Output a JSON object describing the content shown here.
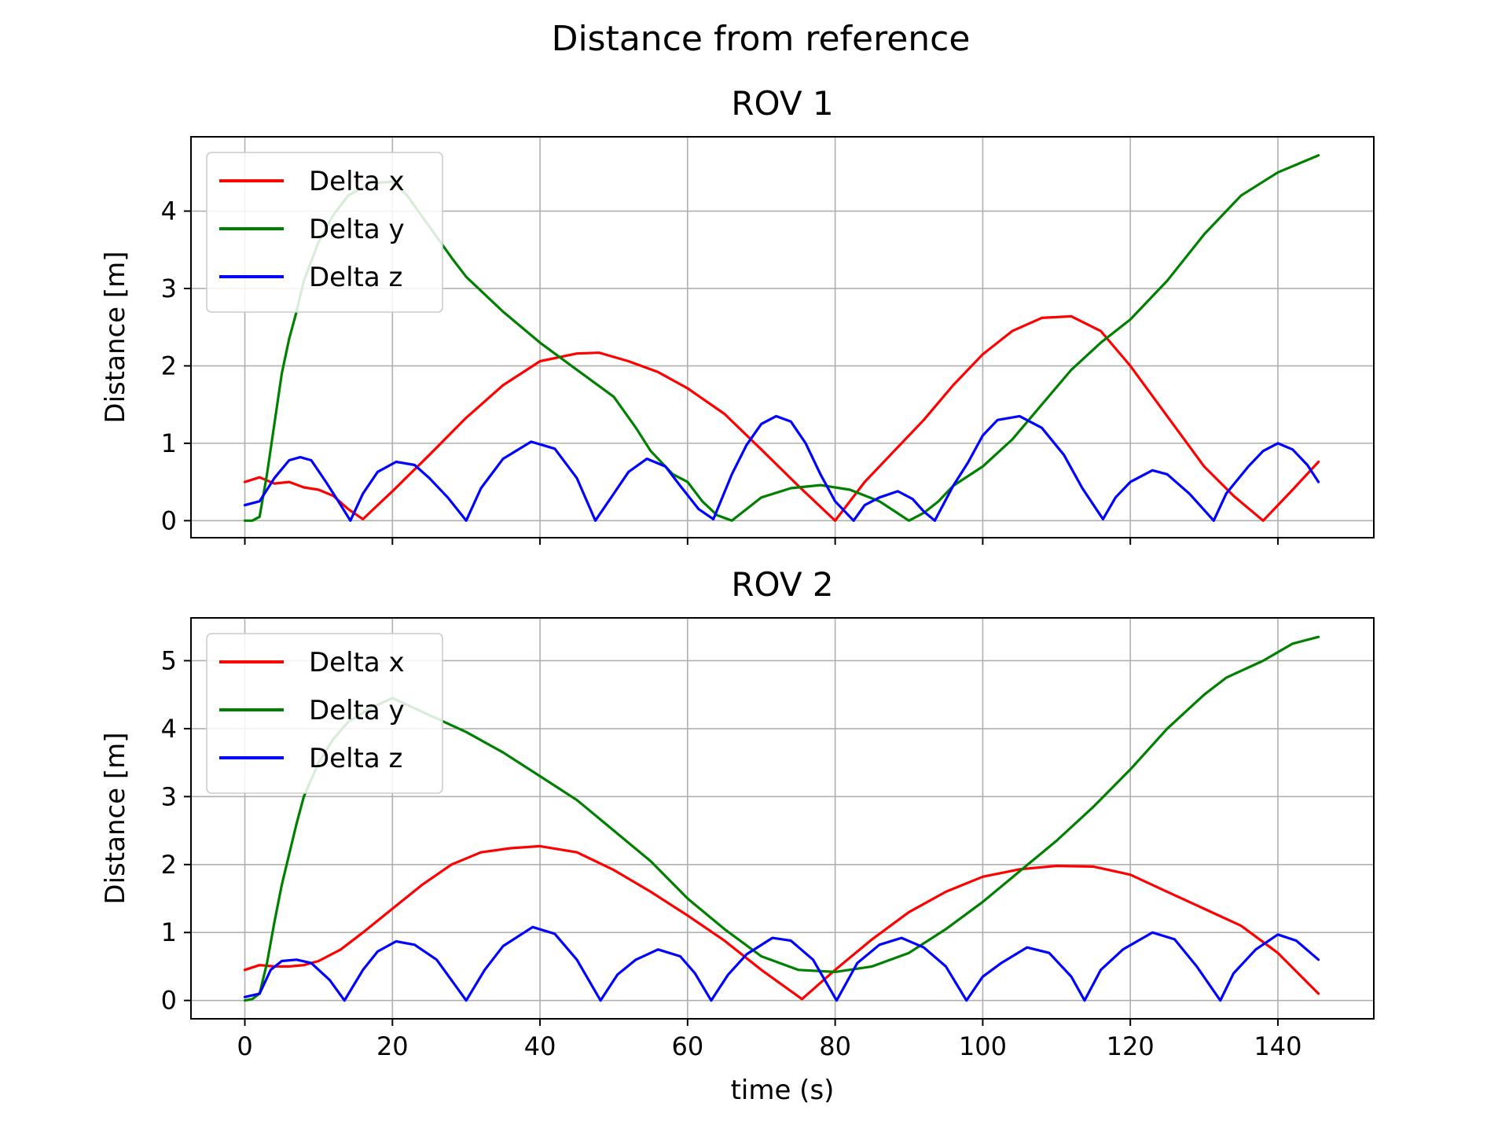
{
  "figure": {
    "title": "Distance from reference"
  },
  "chart_data": [
    {
      "type": "line",
      "title": "ROV 1",
      "xlabel": "",
      "ylabel": "Distance [m]",
      "xlim": [
        -7.3,
        153
      ],
      "ylim": [
        -0.22,
        4.96
      ],
      "xticks": [
        0,
        20,
        40,
        60,
        80,
        100,
        120,
        140
      ],
      "yticks": [
        0,
        1,
        2,
        3,
        4
      ],
      "show_xticklabels": false,
      "grid": true,
      "legend": "upper-left",
      "series": [
        {
          "name": "Delta x",
          "color": "#ff0000",
          "x": [
            0,
            2,
            4,
            6,
            8,
            10,
            12,
            14,
            16,
            18,
            20,
            25,
            30,
            35,
            40,
            45,
            48,
            52,
            56,
            60,
            65,
            70,
            75,
            80,
            84,
            88,
            92,
            96,
            100,
            104,
            108,
            112,
            116,
            120,
            125,
            130,
            134,
            138,
            142,
            145.5
          ],
          "y": [
            0.5,
            0.56,
            0.48,
            0.5,
            0.43,
            0.4,
            0.32,
            0.15,
            0.02,
            0.2,
            0.38,
            0.85,
            1.33,
            1.75,
            2.06,
            2.16,
            2.17,
            2.06,
            1.92,
            1.71,
            1.38,
            0.92,
            0.45,
            0.0,
            0.5,
            0.9,
            1.3,
            1.75,
            2.15,
            2.45,
            2.62,
            2.64,
            2.45,
            2.0,
            1.35,
            0.7,
            0.32,
            0.0,
            0.4,
            0.76
          ]
        },
        {
          "name": "Delta y",
          "color": "#008000",
          "x": [
            0,
            1,
            2,
            3,
            4,
            5,
            6,
            7,
            8,
            10,
            12,
            14,
            17,
            20,
            22,
            25,
            28,
            30,
            35,
            40,
            45,
            50,
            53,
            55,
            58,
            60,
            62,
            64,
            66,
            70,
            74,
            78,
            82,
            86,
            90,
            92,
            94,
            96,
            100,
            104,
            108,
            112,
            116,
            120,
            125,
            130,
            135,
            140,
            145.5
          ],
          "y": [
            0.0,
            0.0,
            0.05,
            0.6,
            1.25,
            1.9,
            2.35,
            2.7,
            3.1,
            3.6,
            3.95,
            4.2,
            4.36,
            4.38,
            4.2,
            3.8,
            3.4,
            3.15,
            2.7,
            2.3,
            1.95,
            1.6,
            1.2,
            0.9,
            0.6,
            0.5,
            0.25,
            0.07,
            0.0,
            0.3,
            0.42,
            0.46,
            0.4,
            0.25,
            0.0,
            0.1,
            0.25,
            0.45,
            0.7,
            1.05,
            1.5,
            1.95,
            2.3,
            2.6,
            3.1,
            3.7,
            4.2,
            4.5,
            4.72
          ]
        },
        {
          "name": "Delta z",
          "color": "#0000ff",
          "x": [
            0,
            2,
            4,
            6,
            7.5,
            9,
            11,
            13,
            14.3,
            16,
            18,
            20.5,
            23,
            25,
            27.5,
            30,
            32,
            35,
            38.8,
            42,
            45,
            47.5,
            50,
            52,
            54.5,
            57,
            59,
            61.5,
            63.5,
            66,
            68,
            70,
            72,
            74,
            76,
            78,
            80,
            82.5,
            84,
            86,
            88.5,
            90.5,
            92,
            93.5,
            96,
            98,
            100,
            102,
            105,
            108,
            111,
            113.5,
            116.3,
            118,
            120,
            123,
            125,
            128,
            131.3,
            133,
            136,
            138,
            140,
            142,
            144,
            145.5
          ],
          "y": [
            0.2,
            0.25,
            0.55,
            0.78,
            0.82,
            0.78,
            0.5,
            0.2,
            0.0,
            0.35,
            0.63,
            0.76,
            0.72,
            0.55,
            0.3,
            0.0,
            0.42,
            0.8,
            1.02,
            0.93,
            0.55,
            0.0,
            0.35,
            0.63,
            0.8,
            0.7,
            0.45,
            0.15,
            0.02,
            0.6,
            0.98,
            1.25,
            1.35,
            1.28,
            1.0,
            0.6,
            0.25,
            0.0,
            0.2,
            0.3,
            0.38,
            0.28,
            0.12,
            0.0,
            0.45,
            0.75,
            1.1,
            1.3,
            1.35,
            1.2,
            0.85,
            0.42,
            0.02,
            0.3,
            0.5,
            0.65,
            0.6,
            0.35,
            0.0,
            0.35,
            0.7,
            0.9,
            1.0,
            0.92,
            0.72,
            0.5
          ]
        }
      ]
    },
    {
      "type": "line",
      "title": "ROV 2",
      "xlabel": "time (s)",
      "ylabel": "Distance [m]",
      "xlim": [
        -7.3,
        153
      ],
      "ylim": [
        -0.27,
        5.63
      ],
      "xticks": [
        0,
        20,
        40,
        60,
        80,
        100,
        120,
        140
      ],
      "yticks": [
        0,
        1,
        2,
        3,
        4,
        5
      ],
      "show_xticklabels": true,
      "grid": true,
      "legend": "upper-left",
      "series": [
        {
          "name": "Delta x",
          "color": "#ff0000",
          "x": [
            0,
            2,
            4,
            6,
            8,
            10,
            13,
            16,
            20,
            24,
            28,
            32,
            36,
            40,
            45,
            50,
            55,
            60,
            65,
            70,
            75.5,
            80,
            85,
            90,
            95,
            100,
            105,
            110,
            115,
            120,
            125,
            130,
            135,
            140,
            145.5
          ],
          "y": [
            0.45,
            0.52,
            0.5,
            0.5,
            0.52,
            0.58,
            0.75,
            1.0,
            1.35,
            1.7,
            2.0,
            2.18,
            2.24,
            2.27,
            2.18,
            1.92,
            1.6,
            1.25,
            0.88,
            0.45,
            0.02,
            0.45,
            0.9,
            1.3,
            1.6,
            1.82,
            1.93,
            1.98,
            1.97,
            1.85,
            1.6,
            1.35,
            1.1,
            0.7,
            0.1
          ]
        },
        {
          "name": "Delta y",
          "color": "#008000",
          "x": [
            0,
            1,
            2,
            3,
            4,
            5,
            6,
            7,
            8,
            9,
            10,
            12,
            14,
            17,
            20,
            23,
            26,
            30,
            35,
            40,
            45,
            50,
            55,
            60,
            65,
            70,
            75,
            80,
            85,
            90,
            95,
            100,
            105,
            110,
            115,
            120,
            125,
            130,
            133,
            138,
            142,
            145.5
          ],
          "y": [
            0.0,
            0.02,
            0.1,
            0.55,
            1.15,
            1.7,
            2.15,
            2.6,
            3.0,
            3.25,
            3.5,
            3.85,
            4.1,
            4.3,
            4.45,
            4.3,
            4.15,
            3.95,
            3.65,
            3.3,
            2.95,
            2.5,
            2.05,
            1.5,
            1.05,
            0.65,
            0.45,
            0.42,
            0.5,
            0.7,
            1.05,
            1.45,
            1.9,
            2.35,
            2.85,
            3.4,
            4.0,
            4.5,
            4.75,
            5.0,
            5.25,
            5.35
          ]
        },
        {
          "name": "Delta z",
          "color": "#0000ff",
          "x": [
            0,
            2,
            3.5,
            5,
            7,
            9,
            11.5,
            13.5,
            16,
            18,
            20.5,
            23,
            26,
            30,
            32.5,
            35,
            39,
            42,
            45,
            48.2,
            50.5,
            53,
            56,
            59,
            61,
            63.2,
            65.5,
            68,
            71.5,
            74,
            77,
            80.2,
            83,
            86,
            89,
            92,
            95,
            97.8,
            100,
            102.5,
            106,
            109,
            112,
            113.8,
            116,
            119,
            123,
            126,
            129,
            132.2,
            134,
            137,
            140,
            142.5,
            145.5
          ],
          "y": [
            0.05,
            0.1,
            0.45,
            0.58,
            0.6,
            0.55,
            0.3,
            0.0,
            0.45,
            0.72,
            0.87,
            0.82,
            0.6,
            0.0,
            0.45,
            0.8,
            1.08,
            0.98,
            0.6,
            0.0,
            0.38,
            0.6,
            0.75,
            0.65,
            0.4,
            0.0,
            0.38,
            0.68,
            0.92,
            0.88,
            0.6,
            0.0,
            0.55,
            0.82,
            0.92,
            0.78,
            0.5,
            0.0,
            0.35,
            0.55,
            0.78,
            0.7,
            0.35,
            0.0,
            0.45,
            0.75,
            1.0,
            0.9,
            0.5,
            0.0,
            0.4,
            0.75,
            0.97,
            0.88,
            0.6
          ]
        }
      ]
    }
  ]
}
